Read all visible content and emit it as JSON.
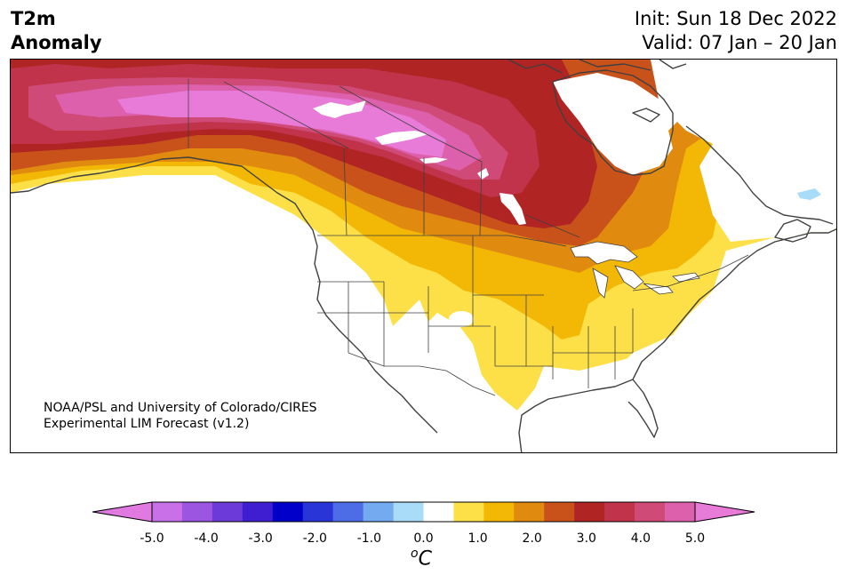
{
  "title": {
    "left_line1": "T2m",
    "left_line2": "Anomaly",
    "right_line1": "Init: Sun 18 Dec 2022",
    "right_line2": "Valid: 07 Jan – 20 Jan"
  },
  "credit": {
    "line1": "NOAA/PSL and University of Colorado/CIRES",
    "line2": "Experimental LIM Forecast (v1.2)"
  },
  "colorbar": {
    "unit_base": "C",
    "unit_super": "o",
    "tick_labels": [
      "-5.0",
      "-4.0",
      "-3.0",
      "-2.0",
      "-1.0",
      "0.0",
      "1.0",
      "2.0",
      "3.0",
      "4.0",
      "5.0"
    ],
    "extend_low_color": "#e07ae0",
    "extend_high_color": "#e87ad8",
    "bins": [
      {
        "range": "-5.0 to -4.5",
        "color": "#c870e8"
      },
      {
        "range": "-4.5 to -4.0",
        "color": "#9b55e0"
      },
      {
        "range": "-4.0 to -3.5",
        "color": "#6b3ad8"
      },
      {
        "range": "-3.5 to -3.0",
        "color": "#3e1ed0"
      },
      {
        "range": "-3.0 to -2.5",
        "color": "#0000c8"
      },
      {
        "range": "-2.5 to -2.0",
        "color": "#2a35d8"
      },
      {
        "range": "-2.0 to -1.5",
        "color": "#4c6de6"
      },
      {
        "range": "-1.5 to -1.0",
        "color": "#74aaf0"
      },
      {
        "range": "-1.0 to -0.5",
        "color": "#a8dcf8"
      },
      {
        "range": "-0.5 to 0.5",
        "color": "#ffffff"
      },
      {
        "range": "0.5 to 1.0",
        "color": "#fde048"
      },
      {
        "range": "1.0 to 1.5",
        "color": "#f3b705"
      },
      {
        "range": "1.5 to 2.0",
        "color": "#e08a10"
      },
      {
        "range": "2.0 to 2.5",
        "color": "#c8521a"
      },
      {
        "range": "2.5 to 3.0",
        "color": "#b02424"
      },
      {
        "range": "3.0 to 3.5",
        "color": "#c0334b"
      },
      {
        "range": "3.5 to 4.0",
        "color": "#d04a78"
      },
      {
        "range": "4.0 to 4.5",
        "color": "#dc60ac"
      }
    ]
  },
  "map": {
    "region": "North America",
    "colors": {
      "pink": "#e87ad8",
      "magenta": "#dc60ac",
      "rose": "#d04a78",
      "crimson": "#c0334b",
      "red": "#b02424",
      "rust": "#c8521a",
      "orange": "#e08a10",
      "gold": "#f3b705",
      "yellow": "#fde048",
      "lightblue": "#a8dcf8",
      "coast": "#404040"
    }
  }
}
